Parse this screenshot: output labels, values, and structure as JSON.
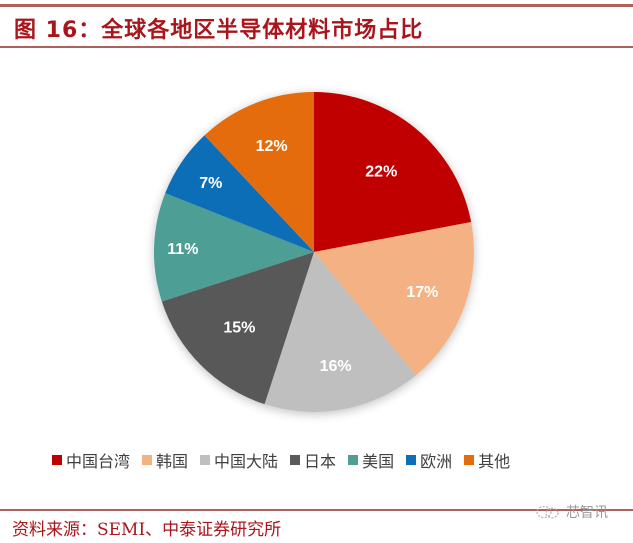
{
  "header": {
    "title": "图 16：全球各地区半导体材料市场占比"
  },
  "legend": [
    {
      "label": "中国台湾",
      "color": "#C00000"
    },
    {
      "label": "韩国",
      "color": "#F4B183"
    },
    {
      "label": "中国大陆",
      "color": "#BFBFBF"
    },
    {
      "label": "日本",
      "color": "#595959"
    },
    {
      "label": "美国",
      "color": "#4E9E95"
    },
    {
      "label": "欧洲",
      "color": "#0E6EB8"
    },
    {
      "label": "其他",
      "color": "#E46C0A"
    }
  ],
  "footer": {
    "source": "资料来源：SEMI、中泰证券研究所",
    "watermark": "芯智讯",
    "watermark_icon": "wechat-icon"
  },
  "chart_data": {
    "type": "pie",
    "title": "全球各地区半导体材料市场占比",
    "categories": [
      "中国台湾",
      "韩国",
      "中国大陆",
      "日本",
      "美国",
      "欧洲",
      "其他"
    ],
    "values": [
      22,
      17,
      16,
      15,
      11,
      7,
      12
    ],
    "labels": [
      "22%",
      "17%",
      "16%",
      "15%",
      "11%",
      "7%",
      "12%"
    ],
    "colors": [
      "#C00000",
      "#F4B183",
      "#BFBFBF",
      "#595959",
      "#4E9E95",
      "#0E6EB8",
      "#E46C0A"
    ],
    "start_angle": "12 o'clock",
    "direction": "clockwise",
    "unit": "%",
    "legend_position": "bottom"
  }
}
